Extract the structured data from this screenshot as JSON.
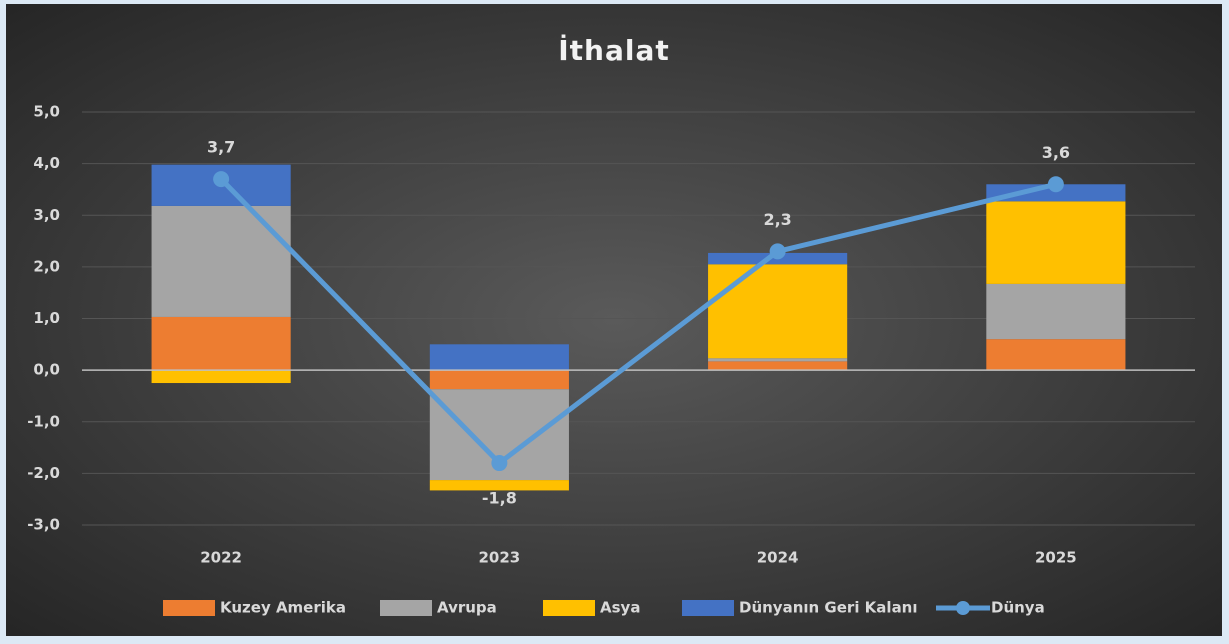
{
  "chart_data": {
    "type": "stacked-bar-line",
    "title": "İthalat",
    "categories": [
      "2022",
      "2023",
      "2024",
      "2025"
    ],
    "series": [
      {
        "name": "Kuzey Amerika",
        "color": "#ed7d31",
        "values": [
          1.03,
          -0.37,
          0.17,
          0.6
        ]
      },
      {
        "name": "Avrupa",
        "color": "#a5a5a5",
        "values": [
          2.15,
          -1.76,
          0.06,
          1.07
        ]
      },
      {
        "name": "Asya",
        "color": "#ffc000",
        "values": [
          -0.25,
          -0.2,
          1.82,
          1.6
        ]
      },
      {
        "name": "Dünyanın Geri Kalanı",
        "color": "#4472c4",
        "values": [
          0.8,
          0.5,
          0.22,
          0.33
        ]
      },
      {
        "name": "Dünya",
        "type": "line",
        "color": "#5b9bd5",
        "values": [
          3.7,
          -1.8,
          2.3,
          3.6
        ],
        "value_labels": [
          "3,7",
          "-1,8",
          "2,3",
          "3,6"
        ]
      }
    ],
    "ylim": [
      -3,
      5
    ],
    "yticks": [
      {
        "value": -3,
        "label": "-3,0"
      },
      {
        "value": -2,
        "label": "-2,0"
      },
      {
        "value": -1,
        "label": "-1,0"
      },
      {
        "value": 0,
        "label": "0,0"
      },
      {
        "value": 1,
        "label": "1,0"
      },
      {
        "value": 2,
        "label": "2,0"
      },
      {
        "value": 3,
        "label": "3,0"
      },
      {
        "value": 4,
        "label": "4,0"
      },
      {
        "value": 5,
        "label": "5,0"
      }
    ],
    "grid": true
  }
}
